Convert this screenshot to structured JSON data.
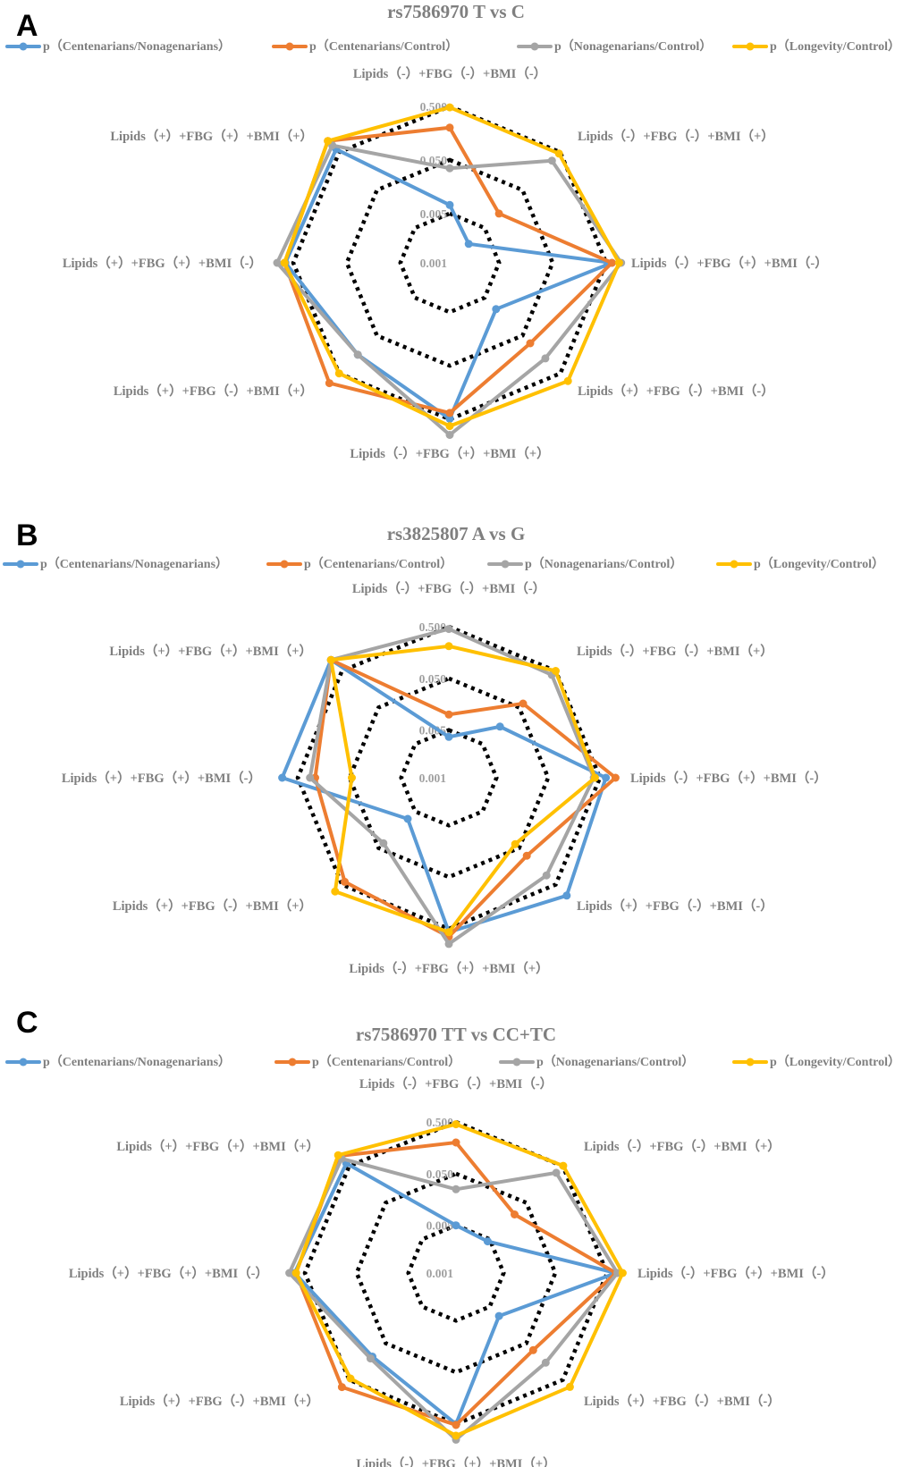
{
  "chart_data": [
    {
      "panel": "A",
      "type": "radar",
      "title": "rs7586970 T vs C",
      "scale": "log",
      "ticks": [
        "0.500",
        "0.050",
        "0.005",
        "0.001"
      ],
      "categories": [
        "Lipids（-）+FBG（-）+BMI（-）",
        "Lipids（-）+FBG（-）+BMI（+）",
        "Lipids（-）+FBG（+）+BMI（-）",
        "Lipids（+）+FBG（-）+BMI（-）",
        "Lipids（-）+FBG（+）+BMI（+）",
        "Lipids（+）+FBG（-）+BMI（+）",
        "Lipids（+）+FBG（+）+BMI（-）",
        "Lipids（+）+FBG（+）+BMI（+）"
      ],
      "legend": "top",
      "series": [
        {
          "name": "p（Centenarians/Nonagenarians）",
          "color": "#5B9BD5",
          "values": [
            0.0072,
            0.0019,
            0.64,
            0.01,
            0.49,
            0.16,
            0.7,
            0.6
          ]
        },
        {
          "name": "p（Centenarians/Control）",
          "color": "#ED7D31",
          "values": [
            0.2,
            0.012,
            0.64,
            0.08,
            0.38,
            0.9,
            0.73,
            0.99
          ]
        },
        {
          "name": "p（Nonagenarians/Control）",
          "color": "#A5A5A5",
          "values": [
            0.035,
            0.3,
            0.95,
            0.2,
            0.98,
            0.16,
            1.0,
            0.76
          ]
        },
        {
          "name": "p（Longevity/Control）",
          "color": "#FFC000",
          "values": [
            0.48,
            0.46,
            0.87,
            0.79,
            0.67,
            0.5,
            0.73,
            0.99
          ]
        }
      ]
    },
    {
      "panel": "B",
      "type": "radar",
      "title": "rs3825807 A vs G",
      "scale": "log",
      "ticks": [
        "0.500",
        "0.050",
        "0.005",
        "0.001"
      ],
      "categories": [
        "Lipids（-）+FBG（-）+BMI（-）",
        "Lipids（-）+FBG（-）+BMI（+）",
        "Lipids（-）+FBG（+）+BMI（-）",
        "Lipids（+）+FBG（-）+BMI（-）",
        "Lipids（-）+FBG（+）+BMI（+）",
        "Lipids（+）+FBG（-）+BMI（+）",
        "Lipids（+）+FBG（+）+BMI（-）",
        "Lipids（+）+FBG（+）+BMI（+）"
      ],
      "legend": "top",
      "series": [
        {
          "name": "p（Centenarians/Nonagenarians）",
          "color": "#5B9BD5",
          "values": [
            0.0037,
            0.015,
            0.65,
            1.0,
            0.58,
            0.008,
            1.0,
            1.0
          ]
        },
        {
          "name": "p（Centenarians/Control）",
          "color": "#ED7D31",
          "values": [
            0.01,
            0.064,
            1.0,
            0.081,
            0.71,
            0.42,
            0.23,
            1.0
          ]
        },
        {
          "name": "p（Nonagenarians/Control）",
          "color": "#A5A5A5",
          "values": [
            0.45,
            0.39,
            0.38,
            0.28,
            0.98,
            0.037,
            0.29,
            1.0
          ]
        },
        {
          "name": "p（Longevity/Control）",
          "color": "#FFC000",
          "values": [
            0.21,
            0.5,
            0.4,
            0.039,
            0.58,
            0.77,
            0.045,
            1.0
          ]
        }
      ]
    },
    {
      "panel": "C",
      "type": "radar",
      "title": "rs7586970 TT vs CC+TC",
      "scale": "log",
      "ticks": [
        "0.500",
        "0.050",
        "0.005",
        "0.001"
      ],
      "categories": [
        "Lipids（-）+FBG（-）+BMI（-）",
        "Lipids（-）+FBG（-）+BMI（+）",
        "Lipids（-）+FBG（+）+BMI（-）",
        "Lipids（+）+FBG（-）+BMI（-）",
        "Lipids（-）+FBG（+）+BMI（+）",
        "Lipids（+）+FBG（-）+BMI（+）",
        "Lipids（+）+FBG（+）+BMI（-）",
        "Lipids（+）+FBG（+）+BMI（+）"
      ],
      "legend": "top",
      "series": [
        {
          "name": "p（Centenarians/Nonagenarians）",
          "color": "#5B9BD5",
          "values": [
            0.005,
            0.0044,
            0.74,
            0.009,
            0.5,
            0.116,
            0.79,
            0.6
          ]
        },
        {
          "name": "p（Centenarians/Control）",
          "color": "#ED7D31",
          "values": [
            0.2,
            0.024,
            0.74,
            0.077,
            0.52,
            0.79,
            0.74,
            0.95
          ]
        },
        {
          "name": "p（Nonagenarians/Control）",
          "color": "#A5A5A5",
          "values": [
            0.025,
            0.33,
            0.79,
            0.17,
            1.0,
            0.13,
            1.0,
            0.8
          ]
        },
        {
          "name": "p（Longevity/Control）",
          "color": "#FFC000",
          "values": [
            0.45,
            0.51,
            1.0,
            0.78,
            0.84,
            0.46,
            0.74,
            1.0
          ]
        }
      ]
    }
  ]
}
